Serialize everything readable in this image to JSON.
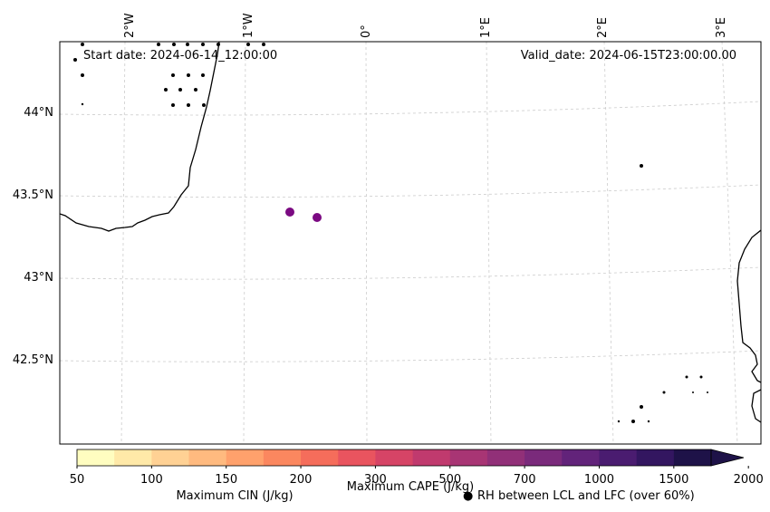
{
  "map": {
    "start_date": "Start date: 2024-06-14_12:00:00",
    "valid_date": "Valid_date: 2024-06-15T23:00:00.00",
    "lon_labels": [
      "2°W",
      "1°W",
      "0°",
      "1°E",
      "2°E",
      "3°E"
    ],
    "lat_labels": [
      "44°N",
      "43.5°N",
      "43°N",
      "42.5°N"
    ],
    "cape_points_color": "#7b0a82"
  },
  "colorbar": {
    "tick_labels": [
      "50",
      "100",
      "150",
      "200",
      "300",
      "500",
      "700",
      "1000",
      "1500",
      "2000"
    ],
    "colors": [
      "#fffdc0",
      "#ffe9a8",
      "#ffd194",
      "#ffba7f",
      "#ffa16c",
      "#fb875f",
      "#f56d5b",
      "#e9545f",
      "#d64466",
      "#c03a6e",
      "#a83574",
      "#913078",
      "#7a2a7b",
      "#62237a",
      "#4a1c70",
      "#331660",
      "#1e1248"
    ],
    "cin_label": "Maximum CIN (J/kg)",
    "cin_label_color": "#ff0000",
    "cape_label": "Maximum CAPE (J/kg)",
    "rh_label": "RH between LCL and LFC (over 60%)",
    "rh_marker": "●"
  }
}
